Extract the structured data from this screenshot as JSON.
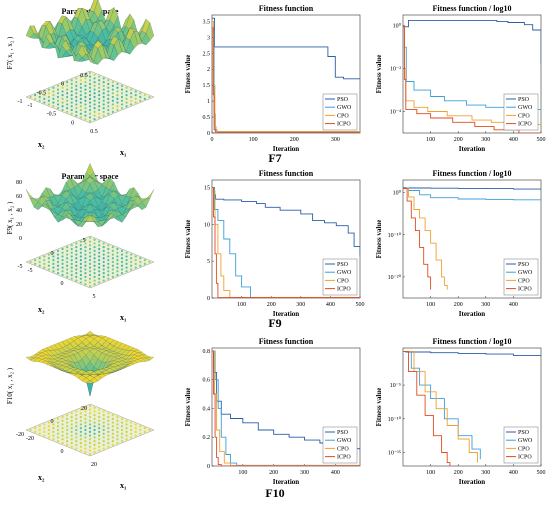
{
  "colors": {
    "PSO": "#2a5caa",
    "GWO": "#3aa0d8",
    "CPO": "#f0a030",
    "ICPO": "#e04a1f",
    "surf_low": "#2a8fb0",
    "surf_mid": "#4cbfa0",
    "surf_high": "#f2d72e"
  },
  "series_names": [
    "PSO",
    "GWO",
    "CPO",
    "ICPO"
  ],
  "rows": [
    {
      "row_label": "F7",
      "surface": {
        "title": "Parameter space",
        "zlabel": "F7( x₁ , x₂ )",
        "xlabel": "x₁",
        "ylabel": "x₂",
        "x_ticks": [
          "-1",
          "-0.5",
          "0",
          "0.5"
        ],
        "y_ticks": [
          "0.5",
          "0",
          "-0.5",
          "-1"
        ],
        "z_ticks": []
      },
      "linear": {
        "title": "Fitness function",
        "ylabel": "Fitness value",
        "xlabel": "Iteration",
        "chart_data": {
          "type": "line",
          "xlim": [
            0,
            360
          ],
          "ylim": [
            0,
            3.7
          ],
          "x_ticks": [
            0,
            100,
            200,
            300
          ],
          "y_ticks": [
            0,
            0.5,
            1,
            1.5,
            2,
            2.5,
            3,
            3.5
          ],
          "series": [
            {
              "name": "PSO",
              "x": [
                0,
                4,
                6,
                270,
                282,
                300,
                320,
                360
              ],
              "y": [
                3.6,
                3.6,
                2.7,
                2.7,
                2.4,
                1.75,
                1.7,
                1.7
              ]
            },
            {
              "name": "GWO",
              "x": [
                0,
                5,
                8,
                12,
                360
              ],
              "y": [
                3.2,
                0.6,
                0.1,
                0.03,
                0.02
              ]
            },
            {
              "name": "CPO",
              "x": [
                0,
                4,
                7,
                10,
                360
              ],
              "y": [
                3.5,
                1.5,
                0.2,
                0.05,
                0.02
              ]
            },
            {
              "name": "ICPO",
              "x": [
                0,
                3,
                5,
                8,
                360
              ],
              "y": [
                3.3,
                1.2,
                0.1,
                0.01,
                0.0
              ]
            }
          ]
        }
      },
      "log": {
        "title": "Fitness function / log10",
        "ylabel": "Fitness value",
        "xlabel": "Iteration",
        "chart_data": {
          "type": "line",
          "scale": "log",
          "xlim": [
            0,
            500
          ],
          "ylim_exp": [
            -5,
            0.5
          ],
          "x_ticks": [
            100,
            200,
            300,
            400,
            500
          ],
          "y_ticks": [
            {
              "exp": 0,
              "label": "10⁰"
            },
            {
              "exp": -2,
              "label": "10⁻²"
            },
            {
              "exp": -4,
              "label": "10⁻⁴"
            }
          ],
          "series": [
            {
              "name": "PSO",
              "x": [
                0,
                20,
                80,
                300,
                340,
                380,
                440,
                470,
                500
              ],
              "y_exp": [
                -0.05,
                0.25,
                0.25,
                0.25,
                0.2,
                0.15,
                0.05,
                -0.2,
                -1.8
              ]
            },
            {
              "name": "GWO",
              "x": [
                0,
                5,
                12,
                40,
                100,
                150,
                230,
                300,
                420,
                500
              ],
              "y_exp": [
                0,
                -1,
                -2.6,
                -3.0,
                -3.3,
                -3.5,
                -3.7,
                -3.8,
                -3.9,
                -3.9
              ]
            },
            {
              "name": "CPO",
              "x": [
                0,
                5,
                10,
                40,
                90,
                160,
                250,
                320,
                400,
                500
              ],
              "y_exp": [
                0,
                -2,
                -3.5,
                -3.8,
                -4.0,
                -4.2,
                -4.4,
                -4.5,
                -4.6,
                -4.6
              ]
            },
            {
              "name": "ICPO",
              "x": [
                0,
                5,
                10,
                50,
                100,
                180,
                260,
                330,
                420,
                500
              ],
              "y_exp": [
                0,
                -2.5,
                -3.9,
                -4.1,
                -4.3,
                -4.5,
                -4.7,
                -4.85,
                -5.0,
                -5.0
              ]
            }
          ]
        }
      }
    },
    {
      "row_label": "F9",
      "surface": {
        "title": "Parameter space",
        "zlabel": "F9( x₁ , x₂ )",
        "xlabel": "x₁",
        "ylabel": "x₂",
        "x_ticks": [
          "-5",
          "0",
          "5"
        ],
        "y_ticks": [
          "5",
          "0",
          "-5"
        ],
        "z_ticks": [
          "0",
          "20",
          "40",
          "60",
          "80"
        ]
      },
      "linear": {
        "title": "Fitness function",
        "ylabel": "Fitness value",
        "xlabel": "Iteration",
        "chart_data": {
          "type": "line",
          "xlim": [
            0,
            500
          ],
          "ylim": [
            0,
            16
          ],
          "x_ticks": [
            100,
            200,
            300,
            400,
            500
          ],
          "y_ticks": [
            0,
            5,
            10,
            15
          ],
          "series": [
            {
              "name": "PSO",
              "x": [
                0,
                8,
                12,
                40,
                100,
                150,
                180,
                230,
                300,
                340,
                380,
                420,
                460,
                480,
                500
              ],
              "y": [
                15,
                14,
                13.4,
                13.3,
                13.1,
                12.8,
                12.3,
                11.9,
                11.4,
                10.5,
                10.2,
                9.8,
                8.8,
                7,
                5.8
              ]
            },
            {
              "name": "GWO",
              "x": [
                0,
                8,
                20,
                40,
                60,
                80,
                100,
                130,
                500
              ],
              "y": [
                15,
                12,
                10.5,
                8,
                6,
                3,
                1.5,
                0.05,
                0
              ]
            },
            {
              "name": "CPO",
              "x": [
                0,
                10,
                20,
                30,
                40,
                60,
                500
              ],
              "y": [
                14.5,
                10,
                6,
                3,
                1,
                0.05,
                0
              ]
            },
            {
              "name": "ICPO",
              "x": [
                0,
                5,
                10,
                15,
                20,
                500
              ],
              "y": [
                15,
                11,
                6,
                2,
                0.05,
                0
              ]
            }
          ]
        }
      },
      "log": {
        "title": "Fitness function / log10",
        "ylabel": "Fitness value",
        "xlabel": "Iteration",
        "chart_data": {
          "type": "line",
          "scale": "log",
          "xlim": [
            0,
            500
          ],
          "ylim_exp": [
            -25,
            3
          ],
          "x_ticks": [
            100,
            200,
            300,
            400
          ],
          "y_ticks": [
            {
              "exp": 0,
              "label": "10⁰"
            },
            {
              "exp": -10,
              "label": "10⁻¹⁰"
            },
            {
              "exp": -20,
              "label": "10⁻²⁰"
            }
          ],
          "series": [
            {
              "name": "PSO",
              "x": [
                0,
                10,
                100,
                200,
                300,
                400,
                500
              ],
              "y_exp": [
                1.2,
                1.1,
                1.05,
                1.0,
                0.95,
                0.85,
                0.75
              ]
            },
            {
              "name": "GWO",
              "x": [
                0,
                20,
                60,
                100,
                200,
                300,
                400,
                500
              ],
              "y_exp": [
                1.1,
                0.5,
                -0.5,
                -1.2,
                -1.5,
                -1.6,
                -1.7,
                -1.75
              ]
            },
            {
              "name": "CPO",
              "x": [
                0,
                20,
                40,
                60,
                80,
                100,
                120,
                140,
                150,
                160
              ],
              "y_exp": [
                1,
                -1,
                -4,
                -6,
                -9,
                -12,
                -16,
                -20,
                -22,
                -23
              ]
            },
            {
              "name": "ICPO",
              "x": [
                0,
                15,
                30,
                45,
                60,
                75,
                90,
                100
              ],
              "y_exp": [
                1,
                -2,
                -6,
                -9,
                -13,
                -17,
                -20,
                -23
              ]
            }
          ]
        }
      }
    },
    {
      "row_label": "F10",
      "surface": {
        "title": "Parameter space",
        "zlabel": "F10( x₁ , x₂ )",
        "xlabel": "x₁",
        "ylabel": "x₂",
        "x_ticks": [
          "-20",
          "0",
          "20"
        ],
        "y_ticks": [
          "20",
          "0",
          "-20"
        ],
        "z_ticks": []
      },
      "linear": {
        "title": "Fitness function",
        "ylabel": "Fitness value",
        "xlabel": "Iteration",
        "chart_data": {
          "type": "line",
          "xlim": [
            0,
            480
          ],
          "ylim": [
            0,
            0.82
          ],
          "x_ticks": [
            100,
            200,
            300,
            400
          ],
          "y_ticks": [
            0,
            0.2,
            0.4,
            0.6,
            0.8
          ],
          "series": [
            {
              "name": "PSO",
              "x": [
                0,
                5,
                15,
                30,
                60,
                100,
                150,
                200,
                250,
                300,
                350,
                400,
                450,
                480
              ],
              "y": [
                0.8,
                0.65,
                0.45,
                0.36,
                0.33,
                0.3,
                0.25,
                0.22,
                0.2,
                0.18,
                0.16,
                0.14,
                0.12,
                0.11
              ]
            },
            {
              "name": "GWO",
              "x": [
                0,
                10,
                20,
                30,
                45,
                60,
                80,
                480
              ],
              "y": [
                0.8,
                0.6,
                0.4,
                0.2,
                0.08,
                0.02,
                0.005,
                0
              ]
            },
            {
              "name": "CPO",
              "x": [
                0,
                8,
                15,
                25,
                40,
                60,
                480
              ],
              "y": [
                0.8,
                0.5,
                0.25,
                0.1,
                0.02,
                0.003,
                0
              ]
            },
            {
              "name": "ICPO",
              "x": [
                0,
                5,
                10,
                15,
                20,
                30,
                480
              ],
              "y": [
                0.8,
                0.5,
                0.2,
                0.06,
                0.01,
                0.001,
                0
              ]
            }
          ]
        }
      },
      "log": {
        "title": "Fitness function / log10",
        "ylabel": "Fitness value",
        "xlabel": "Iteration",
        "chart_data": {
          "type": "line",
          "scale": "log",
          "xlim": [
            0,
            500
          ],
          "ylim_exp": [
            -17,
            0.5
          ],
          "x_ticks": [
            100,
            200,
            300,
            400,
            500
          ],
          "y_ticks": [
            {
              "exp": -5,
              "label": "10⁻⁵"
            },
            {
              "exp": -10,
              "label": "10⁻¹⁰"
            },
            {
              "exp": -15,
              "label": "10⁻¹⁵"
            }
          ],
          "series": [
            {
              "name": "PSO",
              "x": [
                0,
                10,
                100,
                200,
                300,
                400,
                500
              ],
              "y_exp": [
                0,
                -0.1,
                -0.2,
                -0.3,
                -0.4,
                -0.6,
                -0.8
              ]
            },
            {
              "name": "GWO",
              "x": [
                0,
                30,
                60,
                100,
                150,
                200,
                250,
                280
              ],
              "y_exp": [
                0,
                -2.5,
                -5,
                -7,
                -10,
                -12.5,
                -14.5,
                -16
              ]
            },
            {
              "name": "CPO",
              "x": [
                0,
                40,
                80,
                120,
                160,
                200,
                240,
                270
              ],
              "y_exp": [
                0,
                -3,
                -6,
                -8.5,
                -11,
                -13,
                -15,
                -16.5
              ]
            },
            {
              "name": "ICPO",
              "x": [
                0,
                20,
                50,
                80,
                110,
                140,
                160,
                170
              ],
              "y_exp": [
                0,
                -3,
                -6.5,
                -9.5,
                -12.5,
                -15,
                -16.5,
                -17
              ]
            }
          ]
        }
      }
    }
  ]
}
